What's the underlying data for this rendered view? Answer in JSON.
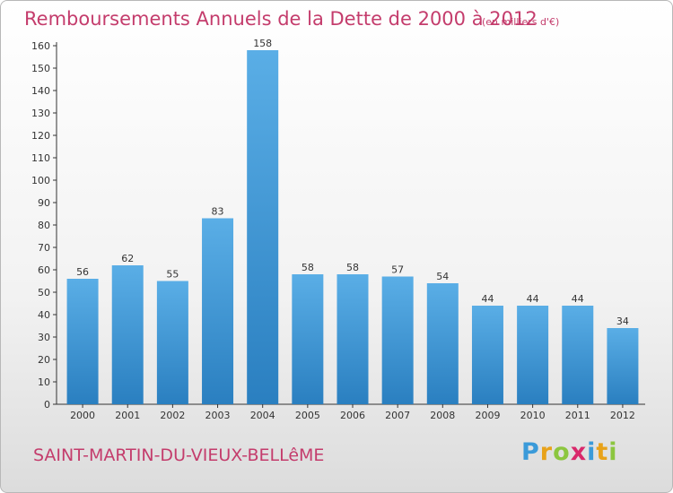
{
  "title": "Remboursements Annuels de la Dette de 2000 à 2012",
  "subtitle": "(en milliers d'€)",
  "city": "SAINT-MARTIN-DU-VIEUX-BELLêME",
  "brand": {
    "letters": [
      "P",
      "r",
      "o",
      "x",
      "i",
      "t",
      "i"
    ],
    "colors": [
      "#3a9ad9",
      "#e8a21a",
      "#8cc63f",
      "#d9286b",
      "#3a9ad9",
      "#e8a21a",
      "#8cc63f"
    ]
  },
  "colors": {
    "bar_top": "#5aaee6",
    "bar_bottom": "#2a7fc0",
    "title": "#c43c6c"
  },
  "chart_data": {
    "type": "bar",
    "categories": [
      "2000",
      "2001",
      "2002",
      "2003",
      "2004",
      "2005",
      "2006",
      "2007",
      "2008",
      "2009",
      "2010",
      "2011",
      "2012"
    ],
    "values": [
      56,
      62,
      55,
      83,
      158,
      58,
      58,
      57,
      54,
      44,
      44,
      44,
      34
    ],
    "title": "Remboursements Annuels de la Dette de 2000 à 2012",
    "xlabel": "",
    "ylabel": "",
    "ylim": [
      0,
      160
    ],
    "yticks": [
      0,
      10,
      20,
      30,
      40,
      50,
      60,
      70,
      80,
      90,
      100,
      110,
      120,
      130,
      140,
      150,
      160
    ],
    "grid": false,
    "data_labels": true
  }
}
